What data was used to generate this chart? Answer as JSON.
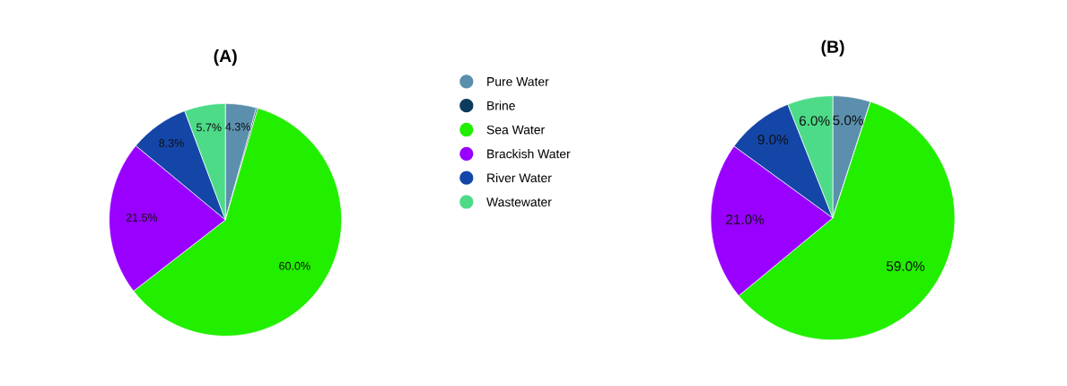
{
  "chart_data": [
    {
      "type": "pie",
      "title": "(A)",
      "categories": [
        "Pure Water",
        "Brine",
        "Sea Water",
        "Brackish Water",
        "River Water",
        "Wastewater"
      ],
      "values": [
        4.3,
        0.2,
        60.0,
        21.5,
        8.3,
        5.7
      ],
      "value_labels": [
        "4.3%",
        null,
        "60.0%",
        "21.5%",
        "8.3%",
        "5.7%"
      ],
      "colors": [
        "#5b8fad",
        "#0d3b5e",
        "#22ee00",
        "#9900ff",
        "#1446a8",
        "#4ddb88"
      ],
      "legend": "right"
    },
    {
      "type": "pie",
      "title": "(B)",
      "categories": [
        null,
        null,
        null,
        null,
        null,
        null
      ],
      "values": [
        5.0,
        0,
        59.0,
        21.0,
        9.0,
        6.0
      ],
      "value_labels": [
        "5.0%",
        null,
        "59.0%",
        "21.0%",
        "9.0%",
        "6.0%"
      ],
      "colors": [
        "#5b8fad",
        "#0d3b5e",
        "#22ee00",
        "#9900ff",
        "#1446a8",
        "#4ddb88"
      ]
    }
  ]
}
